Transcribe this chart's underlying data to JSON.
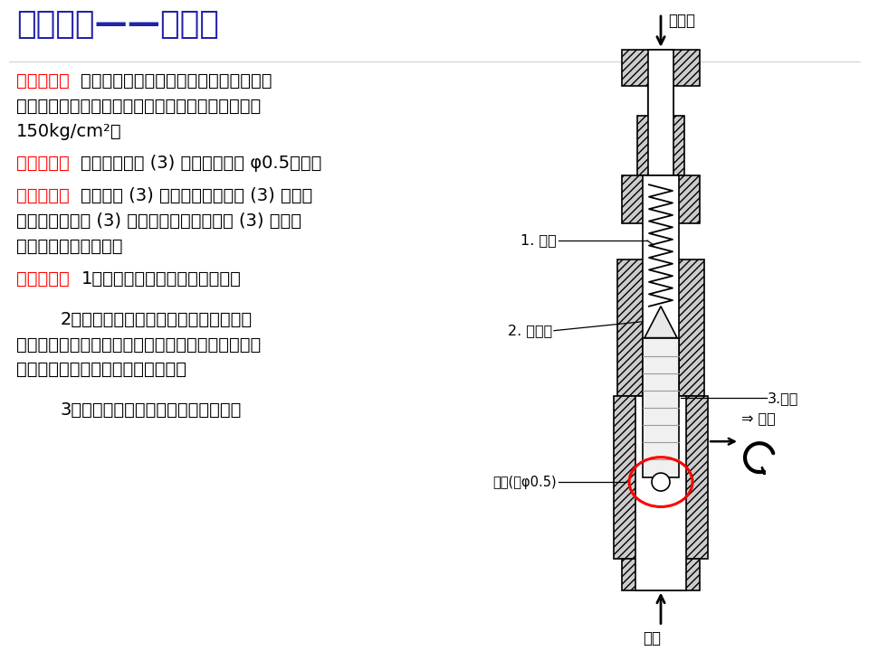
{
  "title": "故障诊断——溢流阀",
  "title_color": "#2222AA",
  "title_fontsize": 26,
  "bg_color": "#FFFFFF",
  "label_color": "#FF0000",
  "text_color": "#000000",
  "body_fontsize": 14,
  "label_fontsize": 14,
  "sections": [
    {
      "label": "故障现象：",
      "label_ul": true,
      "lines": [
        {
          "indent": false,
          "text": "整机所有工作装置速度都慢（全部工作装"
        },
        {
          "indent": false,
          "text": "置速度低于标准值），工作无力，主泵最高压力低于"
        },
        {
          "indent": false,
          "text": "150kg/cm²。"
        }
      ]
    },
    {
      "label": "检查结果：",
      "label_ul": true,
      "lines": [
        {
          "indent": false,
          "text": "主溢流阀柱塞 (3) 有一脏物堵死 φ0.5小孔。"
        }
      ]
    },
    {
      "label": "故障分析：",
      "label_ul": true,
      "lines": [
        {
          "indent": false,
          "text": "由于柱塞 (3) 小孔堵死造成柱塞 (3) 两端压"
        },
        {
          "indent": false,
          "text": "力差很大，柱塞 (3) 常开，高压油通过柱塞 (3) 常通油"
        },
        {
          "indent": false,
          "text": "箱，因此主压力降低。"
        }
      ]
    },
    {
      "label": "故障处理：",
      "label_ul": true,
      "lines": [
        {
          "indent": false,
          "text": "1）将该阀分解清洗干净后组装。"
        },
        {
          "indent": false,
          "text": ""
        },
        {
          "indent": true,
          "text": "2）检查液压油及滤芯已很长时间未换，"
        },
        {
          "indent": false,
          "text": "都已很脏，堵塞小孔的杂质就是来自液压油里脏物，"
        },
        {
          "indent": false,
          "text": "所以清洗管路，更换液压油及滤芯。"
        },
        {
          "indent": false,
          "text": ""
        },
        {
          "indent": true,
          "text": "3）全部完成后重试，压力恢复正常。"
        }
      ]
    }
  ]
}
